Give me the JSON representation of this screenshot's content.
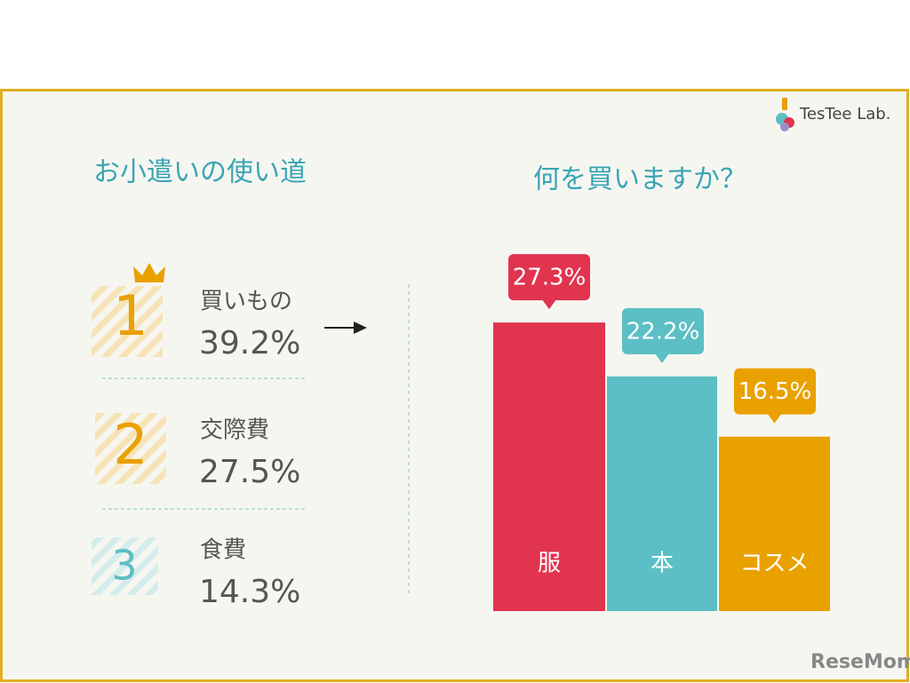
{
  "brand": "TesTee Lab.",
  "watermark": "ReseMom",
  "ranking": {
    "title": "お小遣いの使い道",
    "items": [
      {
        "rank": "1",
        "label": "買いもの",
        "value": "39.2%"
      },
      {
        "rank": "2",
        "label": "交際費",
        "value": "27.5%"
      },
      {
        "rank": "3",
        "label": "食費",
        "value": "14.3%"
      }
    ]
  },
  "chart_data": {
    "type": "bar",
    "title": "何を買いますか？",
    "categories": [
      "服",
      "本",
      "コスメ"
    ],
    "values": [
      27.3,
      22.2,
      16.5
    ],
    "value_labels": [
      "27.3%",
      "22.2%",
      "16.5%"
    ],
    "colors": [
      "#e0344f",
      "#5bbfc5",
      "#e9a100"
    ]
  }
}
